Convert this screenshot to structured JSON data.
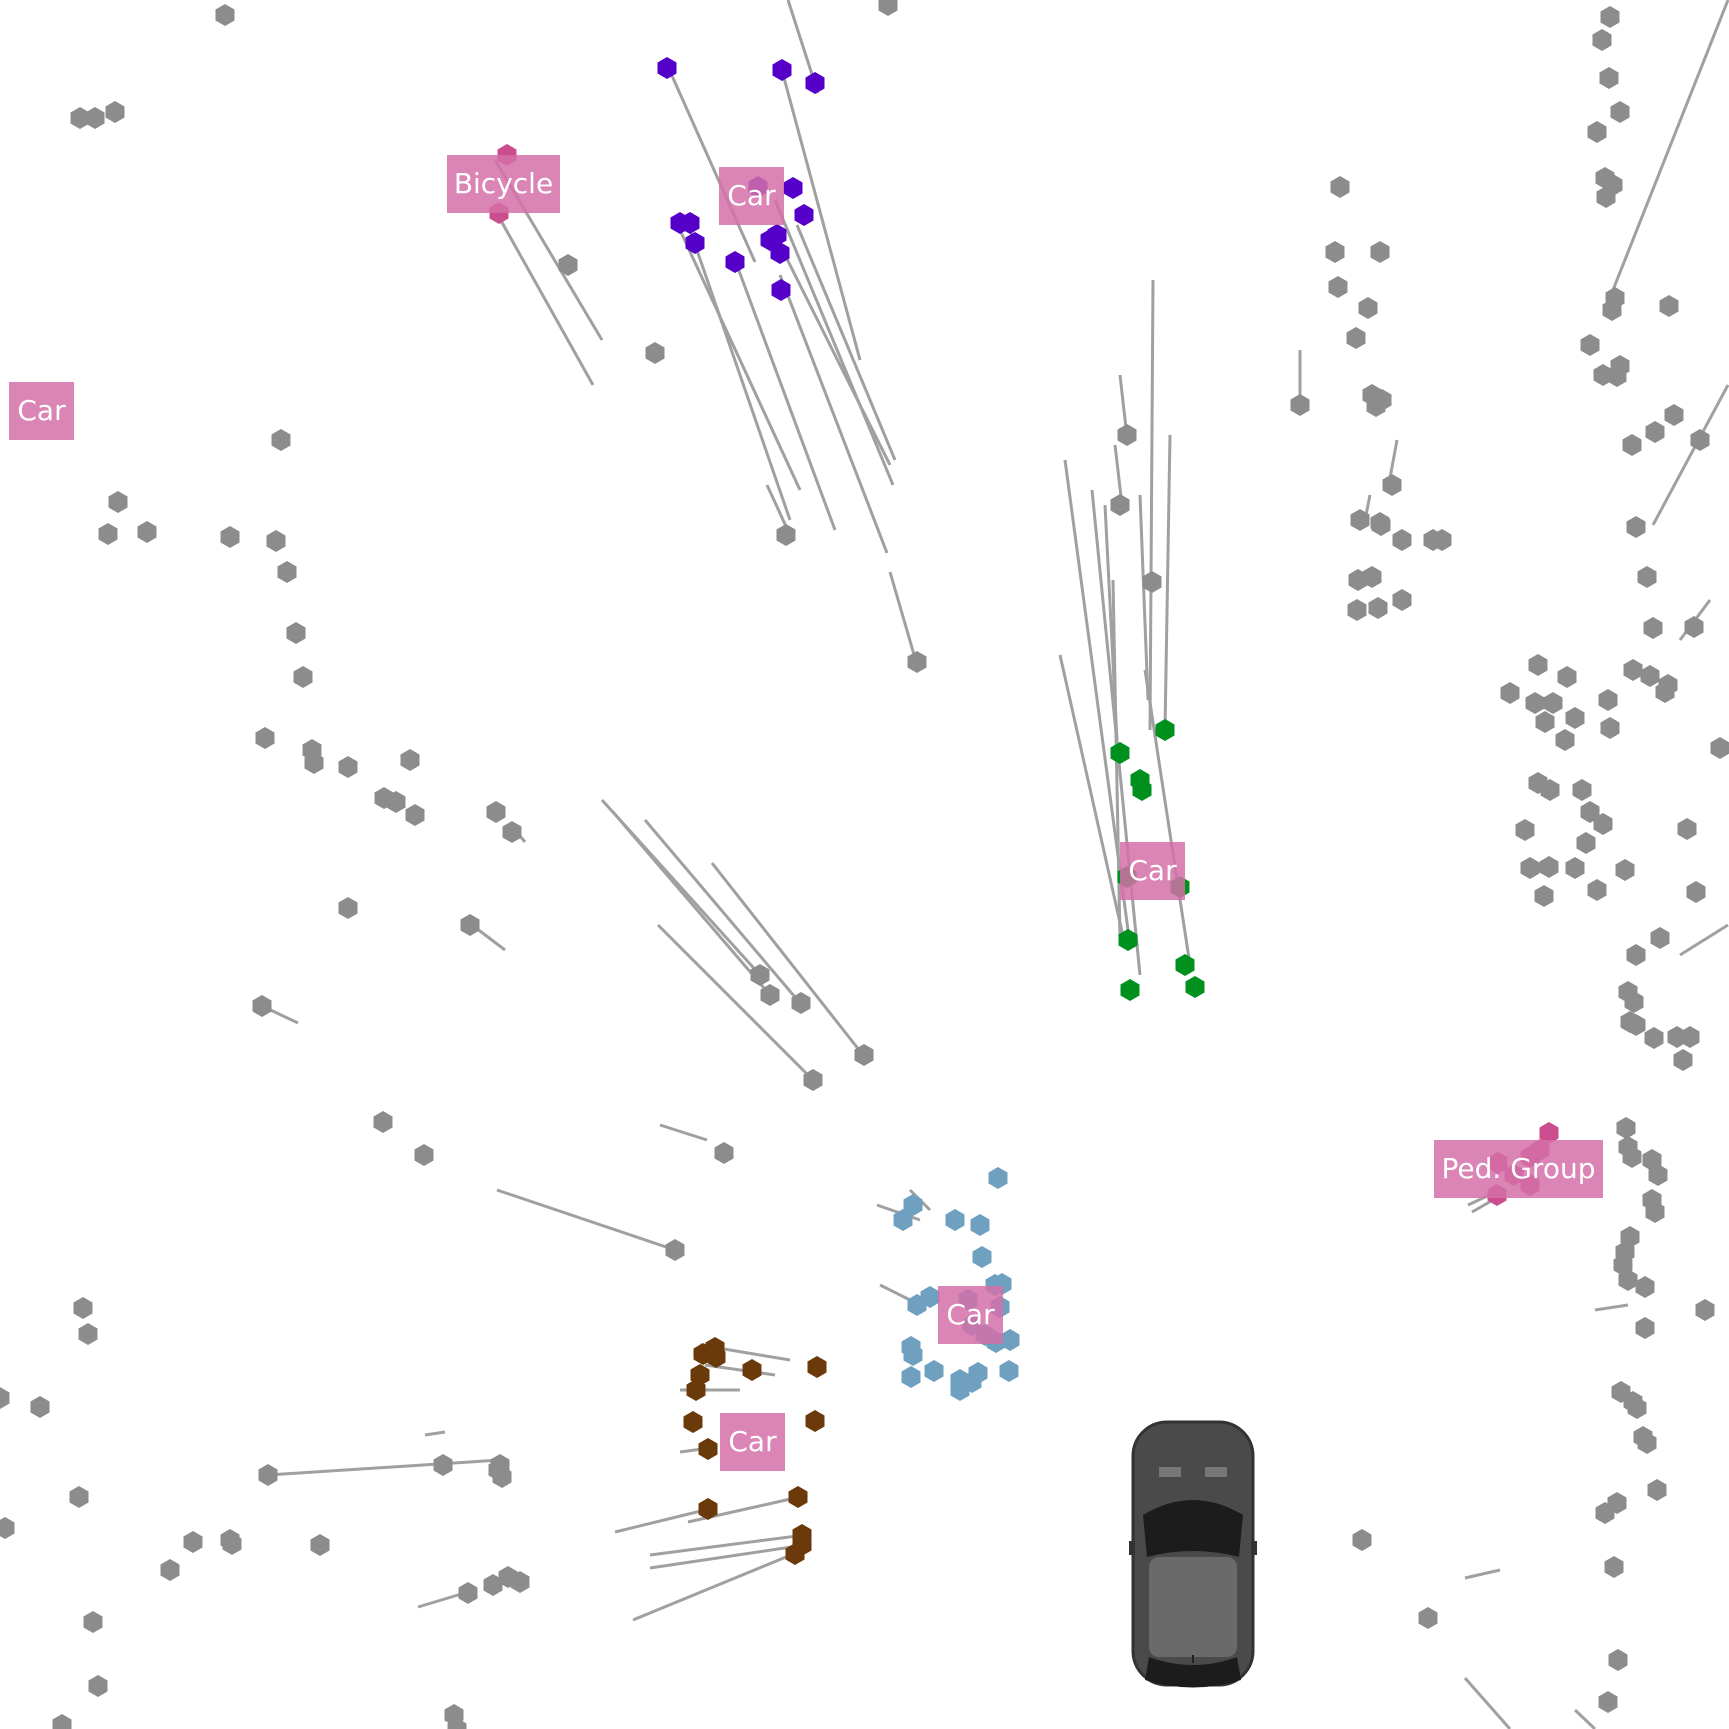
{
  "labels": {
    "bicycle": "Bicycle",
    "car_top_left": "Car",
    "car_top": "Car",
    "car_green": "Car",
    "car_blue": "Car",
    "car_brown": "Car",
    "ped_group": "Ped. Group"
  },
  "colors": {
    "background": "#ffffff",
    "unlabeled_point": "#8c8c8c",
    "track_line": "#a0a0a0",
    "label_fill": "#d470a8",
    "label_text": "#ffffff",
    "bicycle_points": "#cc4d8e",
    "car_top_points": "#5500c8",
    "car_green_points": "#00901e",
    "car_blue_points": "#6fa0bf",
    "car_brown_points": "#6b3a0a",
    "ped_group_points": "#cc4d8e",
    "ego_vehicle": "#555555"
  },
  "icons": {
    "ego_vehicle": "car-top-view-icon",
    "point_marker": "hexagon-icon"
  }
}
